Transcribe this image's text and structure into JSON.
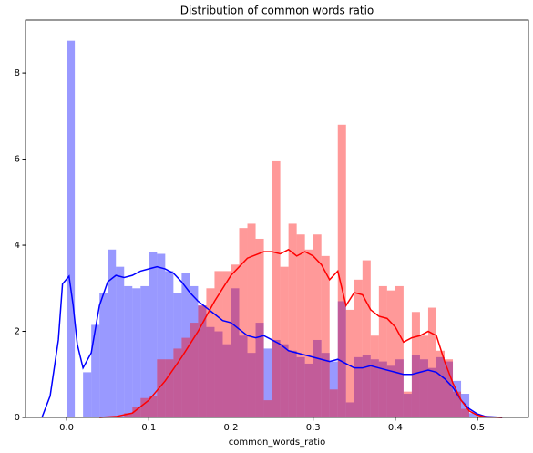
{
  "chart_data": {
    "type": "histogram",
    "title": "Distribution of common words ratio",
    "x_label": "common_words_ratio",
    "xlim": [
      -0.05,
      0.562
    ],
    "ylim": [
      0,
      9.23
    ],
    "xticks": [
      {
        "value": 0,
        "label": "0.0"
      },
      0.1,
      0.2,
      0.3,
      0.4,
      0.5
    ],
    "yticks": [
      0,
      2,
      4,
      6,
      8
    ],
    "bins": [
      0,
      0.01,
      0.02,
      0.03,
      0.04,
      0.05,
      0.06,
      0.07,
      0.08,
      0.09,
      0.1,
      0.11,
      0.12,
      0.13,
      0.14,
      0.15,
      0.16,
      0.17,
      0.18,
      0.19,
      0.2,
      0.21,
      0.22,
      0.23,
      0.24,
      0.25,
      0.26,
      0.27,
      0.28,
      0.29,
      0.3,
      0.31,
      0.32,
      0.33,
      0.34,
      0.35,
      0.36,
      0.37,
      0.38,
      0.39,
      0.4,
      0.41,
      0.42,
      0.43,
      0.44,
      0.45,
      0.46,
      0.47,
      0.48,
      0.49,
      0.5
    ],
    "series": [
      {
        "color": "#0000ff",
        "values": [
          8.75,
          0,
          1.05,
          2.15,
          2.9,
          3.9,
          3.5,
          3.05,
          3.0,
          3.05,
          3.85,
          3.8,
          3.4,
          2.9,
          3.35,
          3.05,
          2.6,
          2.1,
          2.0,
          1.7,
          3.0,
          1.9,
          1.5,
          2.2,
          1.6,
          1.8,
          1.7,
          1.55,
          1.4,
          1.25,
          1.8,
          1.5,
          1.3,
          2.7,
          0.35,
          1.4,
          1.45,
          1.35,
          1.3,
          1.2,
          1.35,
          0.55,
          1.45,
          1.35,
          1.15,
          1.4,
          1.3,
          0.85,
          0.55,
          0.1
        ]
      },
      {
        "color": "#ff0000",
        "values": [
          0,
          0,
          0,
          0,
          0,
          0,
          0,
          0.1,
          0.25,
          0.45,
          0.5,
          1.35,
          1.35,
          1.6,
          1.85,
          2.2,
          2.6,
          3.0,
          3.4,
          3.4,
          3.55,
          4.4,
          4.5,
          4.15,
          0.4,
          5.95,
          3.5,
          4.5,
          4.25,
          3.9,
          4.25,
          3.75,
          0.65,
          6.8,
          2.5,
          3.2,
          3.65,
          1.9,
          3.05,
          2.95,
          3.05,
          0.6,
          2.45,
          1.9,
          2.55,
          1.55,
          1.35,
          0.6,
          0.2,
          0
        ]
      }
    ],
    "kde": [
      {
        "color": "#0000ff",
        "x": [
          -0.03,
          -0.02,
          -0.01,
          -0.005,
          0.003,
          0.008,
          0.013,
          0.02,
          0.03,
          0.04,
          0.05,
          0.06,
          0.07,
          0.08,
          0.09,
          0.1,
          0.11,
          0.12,
          0.13,
          0.14,
          0.15,
          0.16,
          0.17,
          0.18,
          0.19,
          0.2,
          0.21,
          0.22,
          0.23,
          0.24,
          0.25,
          0.26,
          0.27,
          0.28,
          0.29,
          0.3,
          0.31,
          0.32,
          0.33,
          0.34,
          0.35,
          0.36,
          0.37,
          0.38,
          0.39,
          0.4,
          0.41,
          0.42,
          0.43,
          0.44,
          0.45,
          0.46,
          0.47,
          0.48,
          0.49,
          0.5,
          0.51,
          0.53
        ],
        "values": [
          0,
          0.5,
          1.8,
          3.1,
          3.28,
          2.6,
          1.7,
          1.15,
          1.5,
          2.6,
          3.15,
          3.3,
          3.25,
          3.3,
          3.4,
          3.45,
          3.5,
          3.45,
          3.35,
          3.15,
          2.9,
          2.7,
          2.55,
          2.4,
          2.25,
          2.2,
          2.05,
          1.9,
          1.85,
          1.9,
          1.8,
          1.7,
          1.55,
          1.5,
          1.45,
          1.4,
          1.35,
          1.3,
          1.35,
          1.25,
          1.15,
          1.15,
          1.2,
          1.15,
          1.1,
          1.05,
          1.0,
          1.0,
          1.05,
          1.1,
          1.05,
          0.9,
          0.7,
          0.4,
          0.2,
          0.08,
          0.02,
          0
        ]
      },
      {
        "color": "#ff0000",
        "x": [
          0.04,
          0.06,
          0.08,
          0.1,
          0.12,
          0.14,
          0.16,
          0.18,
          0.2,
          0.22,
          0.24,
          0.25,
          0.26,
          0.27,
          0.28,
          0.29,
          0.3,
          0.31,
          0.32,
          0.33,
          0.34,
          0.35,
          0.36,
          0.37,
          0.38,
          0.39,
          0.4,
          0.41,
          0.42,
          0.43,
          0.44,
          0.45,
          0.46,
          0.47,
          0.48,
          0.49,
          0.5,
          0.51,
          0.53
        ],
        "values": [
          0,
          0.02,
          0.1,
          0.4,
          0.85,
          1.4,
          2.0,
          2.7,
          3.3,
          3.7,
          3.85,
          3.85,
          3.8,
          3.9,
          3.75,
          3.85,
          3.75,
          3.55,
          3.2,
          3.4,
          2.6,
          2.9,
          2.85,
          2.5,
          2.35,
          2.3,
          2.1,
          1.75,
          1.85,
          1.9,
          2.0,
          1.9,
          1.3,
          0.8,
          0.4,
          0.15,
          0.05,
          0.01,
          0
        ]
      }
    ]
  }
}
